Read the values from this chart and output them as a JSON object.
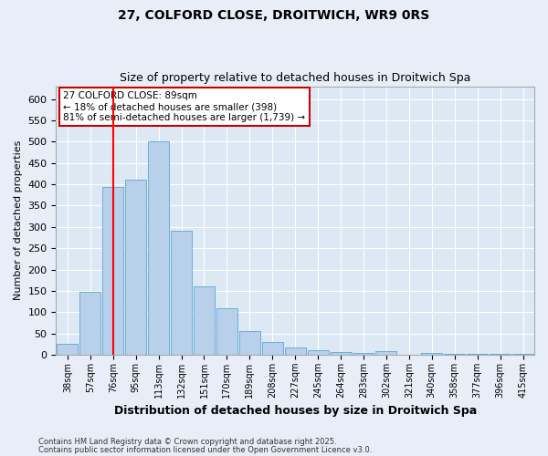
{
  "title1": "27, COLFORD CLOSE, DROITWICH, WR9 0RS",
  "title2": "Size of property relative to detached houses in Droitwich Spa",
  "xlabel": "Distribution of detached houses by size in Droitwich Spa",
  "ylabel": "Number of detached properties",
  "footnote1": "Contains HM Land Registry data © Crown copyright and database right 2025.",
  "footnote2": "Contains public sector information licensed under the Open Government Licence v3.0.",
  "annotation_title": "27 COLFORD CLOSE: 89sqm",
  "annotation_line1": "← 18% of detached houses are smaller (398)",
  "annotation_line2": "81% of semi-detached houses are larger (1,739) →",
  "bar_labels": [
    "38sqm",
    "57sqm",
    "76sqm",
    "95sqm",
    "113sqm",
    "132sqm",
    "151sqm",
    "170sqm",
    "189sqm",
    "208sqm",
    "227sqm",
    "245sqm",
    "264sqm",
    "283sqm",
    "302sqm",
    "321sqm",
    "340sqm",
    "358sqm",
    "377sqm",
    "396sqm",
    "415sqm"
  ],
  "bar_values": [
    25,
    148,
    393,
    410,
    500,
    290,
    160,
    110,
    55,
    30,
    18,
    11,
    7,
    4,
    9,
    1,
    4,
    3,
    2,
    2,
    2
  ],
  "property_line_x": 2,
  "bar_color": "#b8d0ea",
  "bar_edge_color": "#6aaed6",
  "line_color": "#ff0000",
  "background_color": "#dce9f5",
  "fig_background_color": "#e8eef8",
  "annotation_box_color": "#cc0000",
  "grid_color": "#ffffff",
  "ylim": [
    0,
    630
  ],
  "yticks": [
    0,
    50,
    100,
    150,
    200,
    250,
    300,
    350,
    400,
    450,
    500,
    550,
    600
  ]
}
